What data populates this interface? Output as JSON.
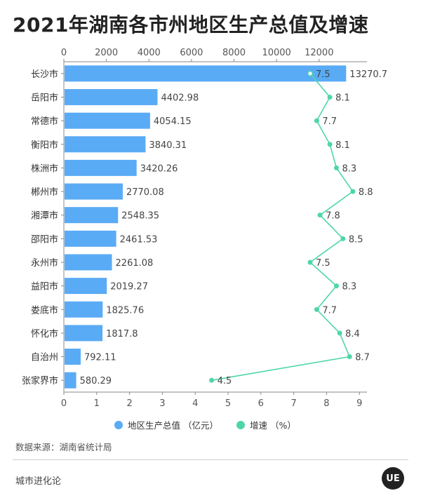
{
  "title": "2021年湖南各市州地区生产总值及增速",
  "legend": {
    "gdp_label": "地区生产总值 （亿元）",
    "growth_label": "增速 （%）"
  },
  "source": "数据来源：湖南省统计局",
  "brand": "城市进化论",
  "logo_text": "UE",
  "colors": {
    "bar": "#5aabf5",
    "line": "#4fd6a8",
    "axis": "#888888",
    "grid": "#e6e6e6"
  },
  "chart_data": {
    "type": "bar",
    "orientation": "horizontal",
    "categories": [
      "长沙市",
      "岳阳市",
      "常德市",
      "衡阳市",
      "株洲市",
      "郴州市",
      "湘潭市",
      "邵阳市",
      "永州市",
      "益阳市",
      "娄底市",
      "怀化市",
      "自治州",
      "张家界市"
    ],
    "series": [
      {
        "name": "地区生产总值 （亿元）",
        "type": "bar",
        "axis": "top",
        "values": [
          13270.7,
          4402.98,
          4054.15,
          3840.31,
          3420.26,
          2770.08,
          2548.35,
          2461.53,
          2261.08,
          2019.27,
          1825.76,
          1817.8,
          792.11,
          580.29
        ],
        "labels": [
          "13270.7",
          "4402.98",
          "4054.15",
          "3840.31",
          "3420.26",
          "2770.08",
          "2548.35",
          "2461.53",
          "2261.08",
          "2019.27",
          "1825.76",
          "1817.8",
          "792.11",
          "580.29"
        ]
      },
      {
        "name": "增速 （%）",
        "type": "line",
        "axis": "bottom",
        "values": [
          7.5,
          8.1,
          7.7,
          8.1,
          8.3,
          8.8,
          7.8,
          8.5,
          7.5,
          8.3,
          7.7,
          8.4,
          8.7,
          4.5
        ],
        "labels": [
          "7.5",
          "8.1",
          "7.7",
          "8.1",
          "8.3",
          "8.8",
          "7.8",
          "8.5",
          "7.5",
          "8.3",
          "7.7",
          "8.4",
          "8.7",
          "4.5"
        ]
      }
    ],
    "top_axis": {
      "min": 0,
      "max": 14250,
      "ticks": [
        0,
        2000,
        4000,
        6000,
        8000,
        10000,
        12000
      ],
      "tick_labels": [
        "0",
        "2000",
        "4000",
        "6000",
        "8000",
        "10000",
        "12000"
      ]
    },
    "bottom_axis": {
      "min": 0,
      "max": 9.23,
      "ticks": [
        0,
        1,
        2,
        3,
        4,
        5,
        6,
        7,
        8,
        9
      ],
      "tick_labels": [
        "0",
        "1",
        "2",
        "3",
        "4",
        "5",
        "6",
        "7",
        "8",
        "9"
      ]
    },
    "legend_position": "bottom",
    "grid": false
  }
}
